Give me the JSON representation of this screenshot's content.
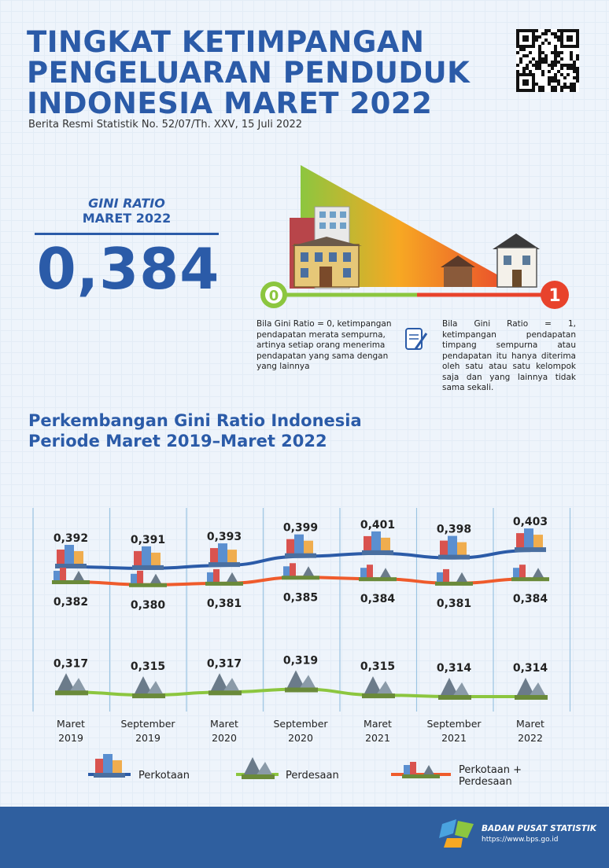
{
  "header": {
    "title_lines": [
      "TINGKAT KETIMPANGAN",
      "PENGELUARAN PENDUDUK",
      "INDONESIA MARET 2022"
    ],
    "subtitle": "Berita Resmi Statistik No. 52/07/Th. XXV, 15 Juli 2022"
  },
  "gini": {
    "label_line1": "GINI RATIO",
    "label_line2": "MARET 2022",
    "value": "0,384"
  },
  "scale": {
    "min_label": "0",
    "max_label": "1",
    "desc_zero": "Bila Gini Ratio = 0, ketimpangan pendapatan merata sempurna, artinya setiap orang menerima pendapatan yang sama dengan yang lainnya",
    "desc_one": "Bila Gini Ratio = 1, ketimpangan pendapatan timpang sempurna atau pendapatan itu hanya diterima oleh satu atau satu kelompok saja dan yang lainnya tidak sama sekali."
  },
  "section": {
    "title_line1": "Perkembangan Gini Ratio Indonesia",
    "title_line2": "Periode Maret 2019–Maret 2022"
  },
  "colors": {
    "title": "#2b5ba8",
    "perkotaan": "#2b5ba8",
    "perdesaan": "#8cc63f",
    "gabungan": "#ef5b2c",
    "footer": "#2f5f9f"
  },
  "chart_data": {
    "type": "line",
    "categories": [
      [
        "Maret",
        "2019"
      ],
      [
        "September",
        "2019"
      ],
      [
        "Maret",
        "2020"
      ],
      [
        "September",
        "2020"
      ],
      [
        "Maret",
        "2021"
      ],
      [
        "September",
        "2021"
      ],
      [
        "Maret",
        "2022"
      ]
    ],
    "series": [
      {
        "name": "Perkotaan",
        "values": [
          0.392,
          0.391,
          0.393,
          0.399,
          0.401,
          0.398,
          0.403
        ],
        "labels": [
          "0,392",
          "0,391",
          "0,393",
          "0,399",
          "0,401",
          "0,398",
          "0,403"
        ],
        "color": "#2b5ba8"
      },
      {
        "name": "Perkotaan + Perdesaan",
        "values": [
          0.382,
          0.38,
          0.381,
          0.385,
          0.384,
          0.381,
          0.384
        ],
        "labels": [
          "0,382",
          "0,380",
          "0,381",
          "0,385",
          "0,384",
          "0,381",
          "0,384"
        ],
        "color": "#ef5b2c"
      },
      {
        "name": "Perdesaan",
        "values": [
          0.317,
          0.315,
          0.317,
          0.319,
          0.315,
          0.314,
          0.314
        ],
        "labels": [
          "0,317",
          "0,315",
          "0,317",
          "0,319",
          "0,315",
          "0,314",
          "0,314"
        ],
        "color": "#8cc63f"
      }
    ],
    "legend": [
      "Perkotaan",
      "Perdesaan",
      "Perkotaan +",
      "Perdesaan"
    ],
    "legend_position": "bottom",
    "grid": true
  },
  "footer": {
    "org_name": "BADAN PUSAT STATISTIK",
    "url": "https://www.bps.go.id"
  }
}
